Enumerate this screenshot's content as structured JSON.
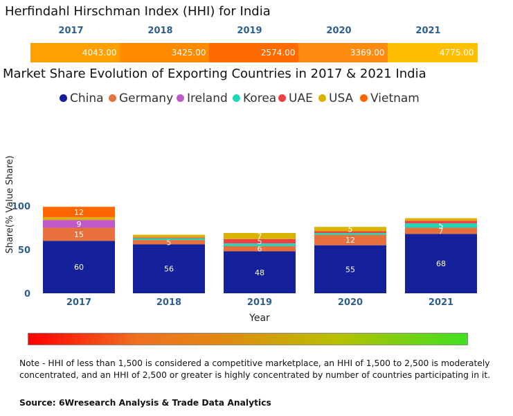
{
  "hhi": {
    "title": "Herfindahl Hirschman Index (HHI) for India",
    "years": [
      "2017",
      "2018",
      "2019",
      "2020",
      "2021"
    ],
    "values": [
      "4043.00",
      "3425.00",
      "2574.00",
      "3369.00",
      "4775.00"
    ],
    "colors": [
      "#ffa000",
      "#ff8a00",
      "#ff6a00",
      "#ff8a10",
      "#ffbe00"
    ]
  },
  "chart_data": {
    "type": "bar",
    "stacked": true,
    "title": "Market Share Evolution of Exporting Countries in 2017 & 2021 India",
    "xlabel": "Year",
    "ylabel": "Share(% Value Share)",
    "ylim": [
      0,
      100
    ],
    "yticks": [
      "0",
      "50",
      "100"
    ],
    "categories": [
      "2017",
      "2018",
      "2019",
      "2020",
      "2021"
    ],
    "series": [
      {
        "name": "China",
        "color": "#14219a",
        "values": [
          60,
          56,
          48,
          55,
          68
        ],
        "labels": [
          "60",
          "56",
          "48",
          "55",
          "68"
        ]
      },
      {
        "name": "Germany",
        "color": "#e8703c",
        "values": [
          15,
          5,
          6,
          12,
          7
        ],
        "labels": [
          "15",
          "5",
          "6",
          "12",
          "7"
        ]
      },
      {
        "name": "Ireland",
        "color": "#c05ac8",
        "values": [
          9,
          0,
          0,
          0,
          0
        ],
        "labels": [
          "9",
          "",
          "",
          "",
          ""
        ]
      },
      {
        "name": "Korea",
        "color": "#1ed8b8",
        "values": [
          0,
          2,
          3,
          2,
          5
        ],
        "labels": [
          "",
          "",
          "",
          "",
          "5"
        ]
      },
      {
        "name": "UAE",
        "color": "#ee4048",
        "values": [
          0,
          1,
          5,
          2,
          3
        ],
        "labels": [
          "",
          "",
          "5",
          "",
          ""
        ]
      },
      {
        "name": "USA",
        "color": "#d8b400",
        "values": [
          3,
          3,
          7,
          5,
          3
        ],
        "labels": [
          "",
          "",
          "7",
          "5",
          ""
        ]
      },
      {
        "name": "Vietnam",
        "color": "#ff6600",
        "values": [
          12,
          0,
          0,
          0,
          0
        ],
        "labels": [
          "12",
          "",
          "",
          "",
          ""
        ]
      }
    ],
    "legend_position": "top"
  },
  "note": "Note - HHI of less than 1,500 is considered a competitive marketplace, an HHI of 1,500 to 2,500 is moderately concentrated, and an HHI of 2,500 or greater is highly concentrated by number of countries participating in it.",
  "source": "Source: 6Wresearch Analysis & Trade Data Analytics"
}
